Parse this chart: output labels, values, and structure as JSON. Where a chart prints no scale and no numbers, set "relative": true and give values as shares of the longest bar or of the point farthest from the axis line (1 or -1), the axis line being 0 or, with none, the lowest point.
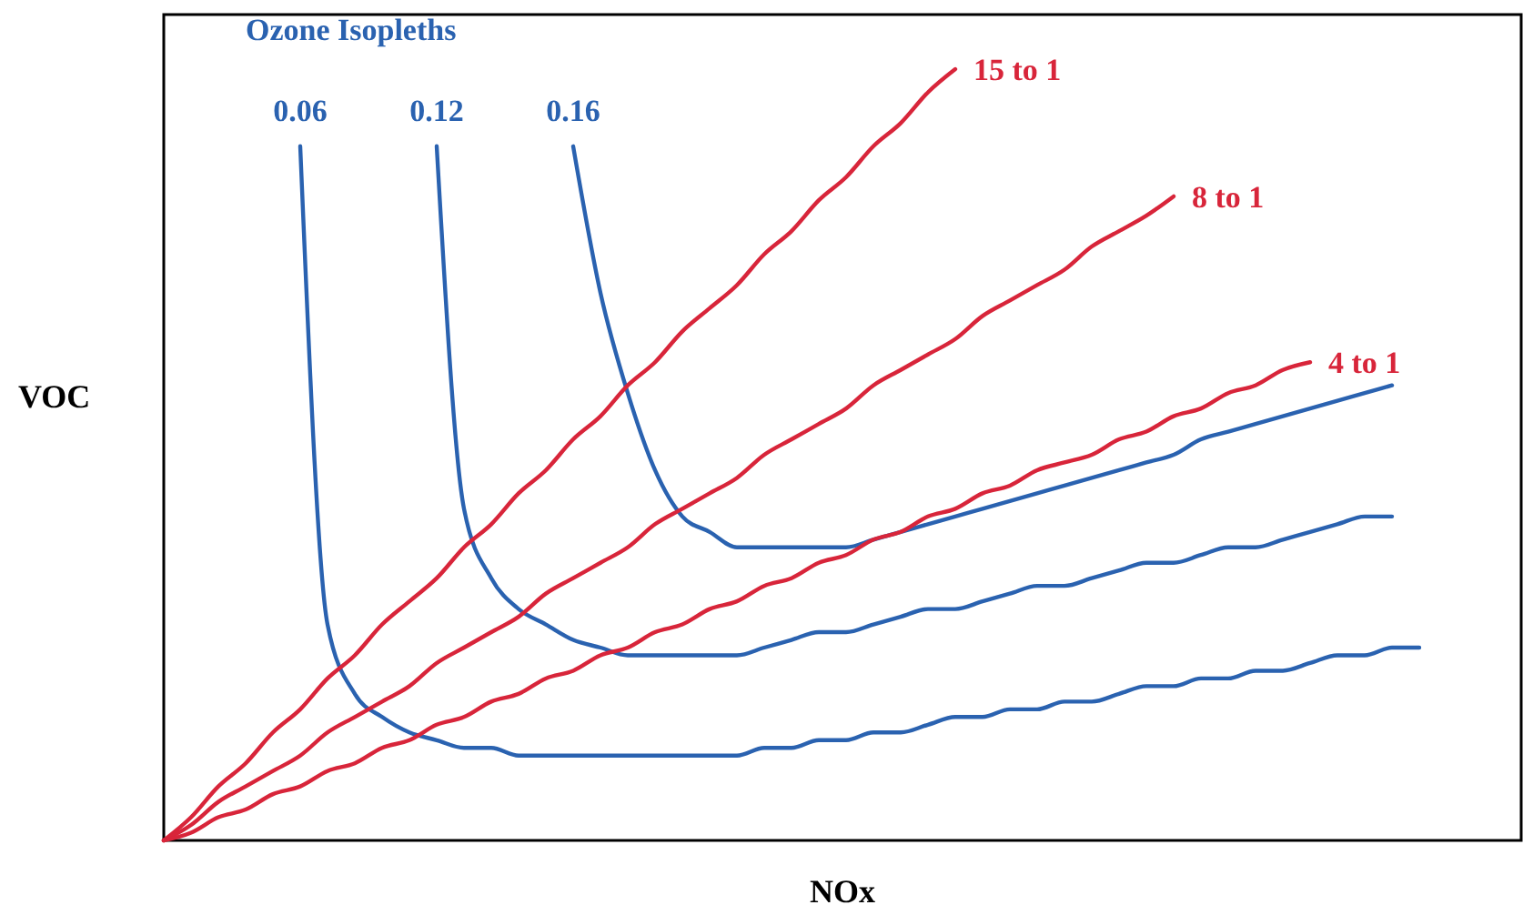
{
  "chart_data": {
    "type": "line",
    "relative": true,
    "xlabel": "NOx",
    "ylabel": "VOC",
    "legend_title": "Ozone Isopleths",
    "grid": false,
    "marker": "none",
    "line_style": "solid",
    "categories": [
      null,
      null,
      null,
      null,
      null,
      null,
      null,
      null,
      null,
      null,
      null,
      null,
      null,
      null,
      null,
      null,
      null,
      null,
      null,
      null,
      null,
      null,
      null,
      null,
      null,
      null,
      null,
      null,
      null,
      null,
      null,
      null,
      null,
      null,
      null,
      null,
      null,
      null,
      null,
      null,
      null,
      null,
      null,
      null,
      null,
      null,
      null,
      null,
      null,
      null,
      null
    ],
    "series": [
      {
        "name": "0.06",
        "color": "#2a62b0",
        "values": [
          null,
          null,
          null,
          null,
          null,
          0.9,
          0.28,
          0.19,
          0.16,
          0.14,
          0.13,
          0.12,
          0.12,
          0.11,
          0.11,
          0.11,
          0.11,
          0.11,
          0.11,
          0.11,
          0.11,
          0.11,
          0.12,
          0.12,
          0.13,
          0.13,
          0.14,
          0.14,
          0.15,
          0.16,
          0.16,
          0.17,
          0.17,
          0.18,
          0.18,
          0.19,
          0.2,
          0.2,
          0.21,
          0.21,
          0.22,
          0.22,
          0.23,
          0.24,
          0.24,
          0.25,
          0.25,
          null,
          null,
          null,
          null
        ]
      },
      {
        "name": "0.12",
        "color": "#2a62b0",
        "values": [
          null,
          null,
          null,
          null,
          null,
          null,
          null,
          null,
          null,
          null,
          0.9,
          0.43,
          0.34,
          0.3,
          0.28,
          0.26,
          0.25,
          0.24,
          0.24,
          0.24,
          0.24,
          0.24,
          0.25,
          0.26,
          0.27,
          0.27,
          0.28,
          0.29,
          0.3,
          0.3,
          0.31,
          0.32,
          0.33,
          0.33,
          0.34,
          0.35,
          0.36,
          0.36,
          0.37,
          0.38,
          0.38,
          0.39,
          0.4,
          0.41,
          0.42,
          0.42,
          null,
          null,
          null,
          null,
          null
        ]
      },
      {
        "name": "0.16",
        "color": "#2a62b0",
        "values": [
          null,
          null,
          null,
          null,
          null,
          null,
          null,
          null,
          null,
          null,
          null,
          null,
          null,
          null,
          null,
          0.9,
          0.71,
          0.58,
          0.48,
          0.42,
          0.4,
          0.38,
          0.38,
          0.38,
          0.38,
          0.38,
          0.39,
          0.4,
          0.41,
          0.42,
          0.43,
          0.44,
          0.45,
          0.46,
          0.47,
          0.48,
          0.49,
          0.5,
          0.52,
          0.53,
          0.54,
          0.55,
          0.56,
          0.57,
          0.58,
          0.59,
          null,
          null,
          null,
          null,
          null
        ]
      },
      {
        "name": "15 to 1",
        "color": "#d8253a",
        "values": [
          0,
          0.03,
          0.07,
          0.1,
          0.14,
          0.17,
          0.21,
          0.24,
          0.28,
          0.31,
          0.34,
          0.38,
          0.41,
          0.45,
          0.48,
          0.52,
          0.55,
          0.59,
          0.62,
          0.66,
          0.69,
          0.72,
          0.76,
          0.79,
          0.83,
          0.86,
          0.9,
          0.93,
          0.97,
          1.0,
          null,
          null,
          null,
          null,
          null,
          null,
          null,
          null,
          null,
          null,
          null,
          null,
          null,
          null,
          null,
          null,
          null,
          null,
          null,
          null,
          null
        ]
      },
      {
        "name": "8 to 1",
        "color": "#d8253a",
        "values": [
          0,
          0.02,
          0.05,
          0.07,
          0.09,
          0.11,
          0.14,
          0.16,
          0.18,
          0.2,
          0.23,
          0.25,
          0.27,
          0.29,
          0.32,
          0.34,
          0.36,
          0.38,
          0.41,
          0.43,
          0.45,
          0.47,
          0.5,
          0.52,
          0.54,
          0.56,
          0.59,
          0.61,
          0.63,
          0.65,
          0.68,
          0.7,
          0.72,
          0.74,
          0.77,
          0.79,
          0.81,
          0.835,
          null,
          null,
          null,
          null,
          null,
          null,
          null,
          null,
          null,
          null,
          null,
          null,
          null
        ]
      },
      {
        "name": "4 to 1",
        "color": "#d8253a",
        "values": [
          0,
          0.01,
          0.03,
          0.04,
          0.06,
          0.07,
          0.09,
          0.1,
          0.12,
          0.13,
          0.15,
          0.16,
          0.18,
          0.19,
          0.21,
          0.22,
          0.24,
          0.25,
          0.27,
          0.28,
          0.3,
          0.31,
          0.33,
          0.34,
          0.36,
          0.37,
          0.39,
          0.4,
          0.42,
          0.43,
          0.45,
          0.46,
          0.48,
          0.49,
          0.5,
          0.52,
          0.53,
          0.55,
          0.56,
          0.58,
          0.59,
          0.61,
          0.62,
          null,
          null,
          null,
          null,
          null,
          null,
          null,
          null
        ]
      }
    ]
  }
}
